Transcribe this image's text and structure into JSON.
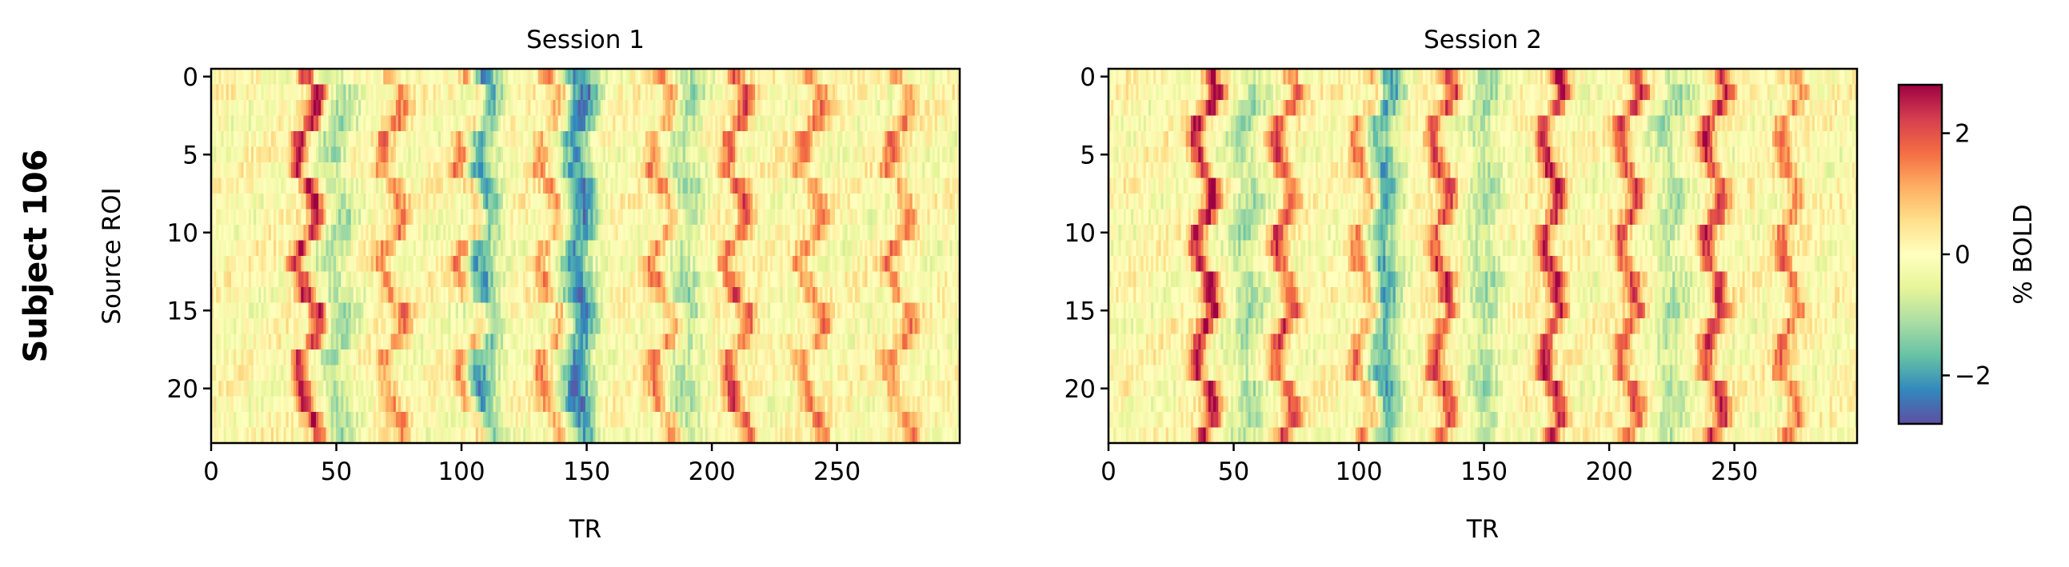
{
  "figure": {
    "row_label": "Subject 106",
    "colorbar": {
      "label": "% BOLD",
      "colormap": "Spectral_r",
      "vmin": -2.8,
      "vmax": 2.8,
      "ticks": [
        {
          "value": 2,
          "label": "2"
        },
        {
          "value": 0,
          "label": "0"
        },
        {
          "value": -2,
          "label": "−2"
        }
      ]
    }
  },
  "chart_data": [
    {
      "type": "heatmap",
      "title": "Session 1",
      "xlabel": "TR",
      "ylabel": "Source ROI",
      "xlim": [
        0,
        299
      ],
      "ylim": [
        23.5,
        -0.5
      ],
      "n_rois": 24,
      "n_trs": 300,
      "xticks": [
        {
          "value": 0,
          "label": "0"
        },
        {
          "value": 50,
          "label": "50"
        },
        {
          "value": 100,
          "label": "100"
        },
        {
          "value": 150,
          "label": "150"
        },
        {
          "value": 200,
          "label": "200"
        },
        {
          "value": 250,
          "label": "250"
        }
      ],
      "yticks": [
        {
          "value": 0,
          "label": "0"
        },
        {
          "value": 5,
          "label": "5"
        },
        {
          "value": 10,
          "label": "10"
        },
        {
          "value": 15,
          "label": "15"
        },
        {
          "value": 20,
          "label": "20"
        }
      ],
      "peak_bands": [
        {
          "tr": 38,
          "amplitude": 2.6
        },
        {
          "tr": 72,
          "amplitude": 1.4
        },
        {
          "tr": 103,
          "amplitude": 2.0
        },
        {
          "tr": 135,
          "amplitude": 1.3
        },
        {
          "tr": 180,
          "amplitude": 1.5
        },
        {
          "tr": 210,
          "amplitude": 2.0
        },
        {
          "tr": 240,
          "amplitude": 1.5
        },
        {
          "tr": 275,
          "amplitude": 1.4
        }
      ],
      "trough_bands": [
        {
          "tr": 108,
          "amplitude": -2.0
        },
        {
          "tr": 147,
          "amplitude": -2.2
        },
        {
          "tr": 50,
          "amplitude": -1.0
        },
        {
          "tr": 190,
          "amplitude": -1.0
        }
      ],
      "noise_amplitude": 0.5,
      "seed": 106
    },
    {
      "type": "heatmap",
      "title": "Session 2",
      "xlabel": "TR",
      "ylabel": "",
      "xlim": [
        0,
        299
      ],
      "ylim": [
        23.5,
        -0.5
      ],
      "n_rois": 24,
      "n_trs": 300,
      "xticks": [
        {
          "value": 0,
          "label": "0"
        },
        {
          "value": 50,
          "label": "50"
        },
        {
          "value": 100,
          "label": "100"
        },
        {
          "value": 150,
          "label": "150"
        },
        {
          "value": 200,
          "label": "200"
        },
        {
          "value": 250,
          "label": "250"
        }
      ],
      "yticks": [
        {
          "value": 0,
          "label": "0"
        },
        {
          "value": 5,
          "label": "5"
        },
        {
          "value": 10,
          "label": "10"
        },
        {
          "value": 15,
          "label": "15"
        },
        {
          "value": 20,
          "label": "20"
        }
      ],
      "peak_bands": [
        {
          "tr": 38,
          "amplitude": 2.6
        },
        {
          "tr": 70,
          "amplitude": 2.0
        },
        {
          "tr": 102,
          "amplitude": 1.7
        },
        {
          "tr": 133,
          "amplitude": 2.2
        },
        {
          "tr": 177,
          "amplitude": 2.6
        },
        {
          "tr": 208,
          "amplitude": 2.0
        },
        {
          "tr": 242,
          "amplitude": 2.3
        },
        {
          "tr": 272,
          "amplitude": 1.6
        }
      ],
      "trough_bands": [
        {
          "tr": 110,
          "amplitude": -1.8
        },
        {
          "tr": 150,
          "amplitude": -1.0
        },
        {
          "tr": 55,
          "amplitude": -1.0
        },
        {
          "tr": 225,
          "amplitude": -0.9
        }
      ],
      "noise_amplitude": 0.5,
      "seed": 206
    }
  ]
}
